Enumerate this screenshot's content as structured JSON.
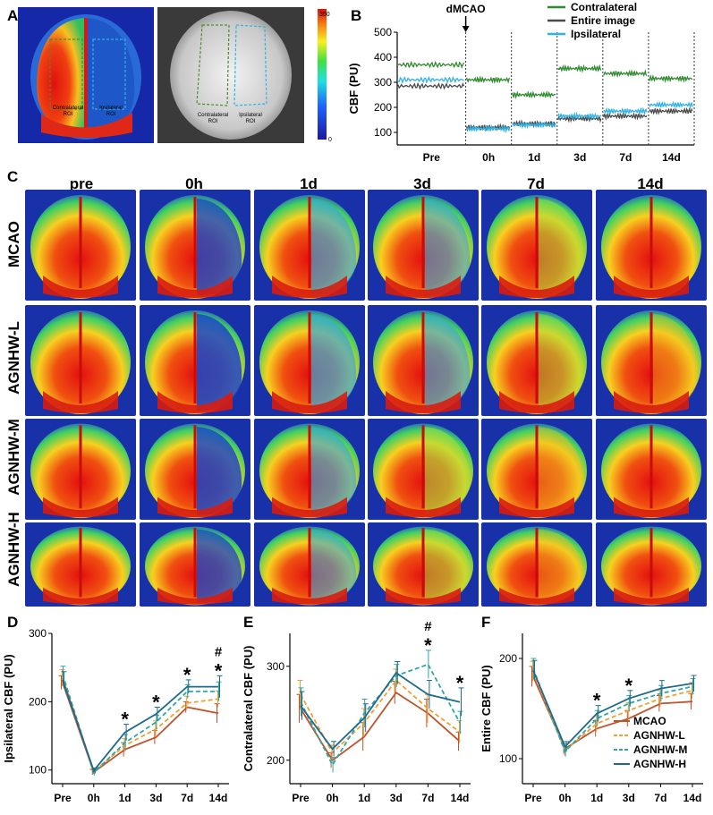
{
  "figure": {
    "panels": [
      "A",
      "B",
      "C",
      "D",
      "E",
      "F"
    ]
  },
  "panel_a": {
    "colorbar_max": "350",
    "colorbar_min": "0",
    "roi_labels": [
      {
        "line1": "Contralateral",
        "line2": "ROI"
      },
      {
        "line1": "Ipsilateral",
        "line2": "ROI"
      }
    ],
    "colors": {
      "contralateral_roi": "#4c8c2c",
      "ipsilateral_roi": "#29b6e6"
    }
  },
  "panel_c": {
    "column_headers": [
      "pre",
      "0h",
      "1d",
      "3d",
      "7d",
      "14d"
    ],
    "row_labels": [
      "MCAO",
      "AGNHW-L",
      "AGNHW-M",
      "AGNHW-H"
    ],
    "reduced_perfusion": [
      [
        0,
        0.75,
        0.55,
        0.45,
        0.25,
        0.0
      ],
      [
        0,
        0.85,
        0.6,
        0.5,
        0.2,
        0.05
      ],
      [
        0,
        0.8,
        0.5,
        0.35,
        0.15,
        0.0
      ],
      [
        0,
        0.7,
        0.4,
        0.25,
        0.05,
        0.0
      ]
    ]
  },
  "chart_data": [
    {
      "panel": "B",
      "type": "line",
      "xlabel": "",
      "ylabel": "CBF (PU)",
      "ylim": [
        50,
        500
      ],
      "yticks": [
        100,
        200,
        300,
        400,
        500
      ],
      "categories": [
        "Pre",
        "0h",
        "1d",
        "3d",
        "7d",
        "14d"
      ],
      "annotation": "dMCAO",
      "series": [
        {
          "name": "Contralateral",
          "color": "#2e8b2e",
          "values": [
            370,
            310,
            250,
            355,
            335,
            315
          ]
        },
        {
          "name": "Entire image",
          "color": "#4a4a4a",
          "values": [
            285,
            120,
            135,
            155,
            165,
            185
          ]
        },
        {
          "name": "Ipsilateral",
          "color": "#2fb2e8",
          "values": [
            310,
            115,
            130,
            165,
            185,
            210
          ]
        }
      ]
    },
    {
      "panel": "D",
      "type": "line",
      "ylabel": "Ipsilateral CBF (PU)",
      "ylim": [
        80,
        300
      ],
      "yticks": [
        100,
        200,
        300
      ],
      "categories": [
        "Pre",
        "0h",
        "1d",
        "3d",
        "7d",
        "14d"
      ],
      "series": [
        {
          "name": "MCAO",
          "values": [
            228,
            97,
            130,
            148,
            192,
            183
          ],
          "err": [
            10,
            4,
            10,
            10,
            8,
            14
          ]
        },
        {
          "name": "AGNHW-L",
          "values": [
            235,
            98,
            136,
            160,
            198,
            204
          ],
          "err": [
            12,
            4,
            10,
            12,
            10,
            12
          ]
        },
        {
          "name": "AGNHW-M",
          "values": [
            240,
            96,
            140,
            170,
            215,
            215
          ],
          "err": [
            12,
            4,
            12,
            10,
            10,
            14
          ]
        },
        {
          "name": "AGNHW-H",
          "values": [
            232,
            99,
            155,
            182,
            222,
            222
          ],
          "err": [
            12,
            4,
            12,
            10,
            10,
            16
          ]
        }
      ],
      "annotations": [
        {
          "category": "1d",
          "text": "*"
        },
        {
          "category": "3d",
          "text": "*"
        },
        {
          "category": "7d",
          "text": "*"
        },
        {
          "category": "14d",
          "text": "*"
        },
        {
          "category": "14d",
          "text": "#"
        }
      ]
    },
    {
      "panel": "E",
      "type": "line",
      "ylabel": "Contralateral CBF (PU)",
      "ylim": [
        175,
        335
      ],
      "yticks": [
        200,
        300
      ],
      "categories": [
        "Pre",
        "0h",
        "1d",
        "3d",
        "7d",
        "14d"
      ],
      "series": [
        {
          "name": "MCAO",
          "values": [
            255,
            200,
            225,
            272,
            250,
            220
          ],
          "err": [
            15,
            8,
            15,
            12,
            15,
            10
          ]
        },
        {
          "name": "AGNHW-L",
          "values": [
            270,
            208,
            240,
            285,
            255,
            230
          ],
          "err": [
            15,
            8,
            15,
            12,
            15,
            12
          ]
        },
        {
          "name": "AGNHW-M",
          "values": [
            262,
            195,
            250,
            290,
            302,
            240
          ],
          "err": [
            15,
            8,
            15,
            12,
            15,
            12
          ]
        },
        {
          "name": "AGNHW-H",
          "values": [
            258,
            212,
            245,
            293,
            270,
            262
          ],
          "err": [
            15,
            8,
            15,
            12,
            15,
            15
          ]
        }
      ],
      "annotations": [
        {
          "category": "7d",
          "text": "*"
        },
        {
          "category": "7d",
          "text": "#"
        },
        {
          "category": "14d",
          "text": "*"
        }
      ]
    },
    {
      "panel": "F",
      "type": "line",
      "ylabel": "Entire CBF (PU)",
      "ylim": [
        75,
        225
      ],
      "yticks": [
        100,
        200
      ],
      "categories": [
        "Pre",
        "0h",
        "1d",
        "3d",
        "7d",
        "14d"
      ],
      "series": [
        {
          "name": "MCAO",
          "values": [
            182,
            110,
            130,
            140,
            155,
            157
          ],
          "err": [
            10,
            5,
            8,
            8,
            8,
            8
          ]
        },
        {
          "name": "AGNHW-L",
          "values": [
            187,
            108,
            135,
            148,
            160,
            168
          ],
          "err": [
            10,
            5,
            8,
            8,
            8,
            8
          ]
        },
        {
          "name": "AGNHW-M",
          "values": [
            190,
            107,
            140,
            155,
            165,
            172
          ],
          "err": [
            10,
            5,
            8,
            8,
            8,
            8
          ]
        },
        {
          "name": "AGNHW-H",
          "values": [
            188,
            112,
            145,
            160,
            170,
            175
          ],
          "err": [
            10,
            5,
            8,
            8,
            8,
            8
          ]
        }
      ],
      "annotations": [
        {
          "category": "1d",
          "text": "*"
        },
        {
          "category": "3d",
          "text": "*"
        }
      ],
      "legend": [
        "MCAO",
        "AGNHW-L",
        "AGNHW-M",
        "AGNHW-H"
      ]
    }
  ],
  "group_colors": {
    "MCAO": "#c0522a",
    "AGNHW-L": "#f0a030",
    "AGNHW-M": "#2fa6a6",
    "AGNHW-H": "#1e6b8c"
  }
}
